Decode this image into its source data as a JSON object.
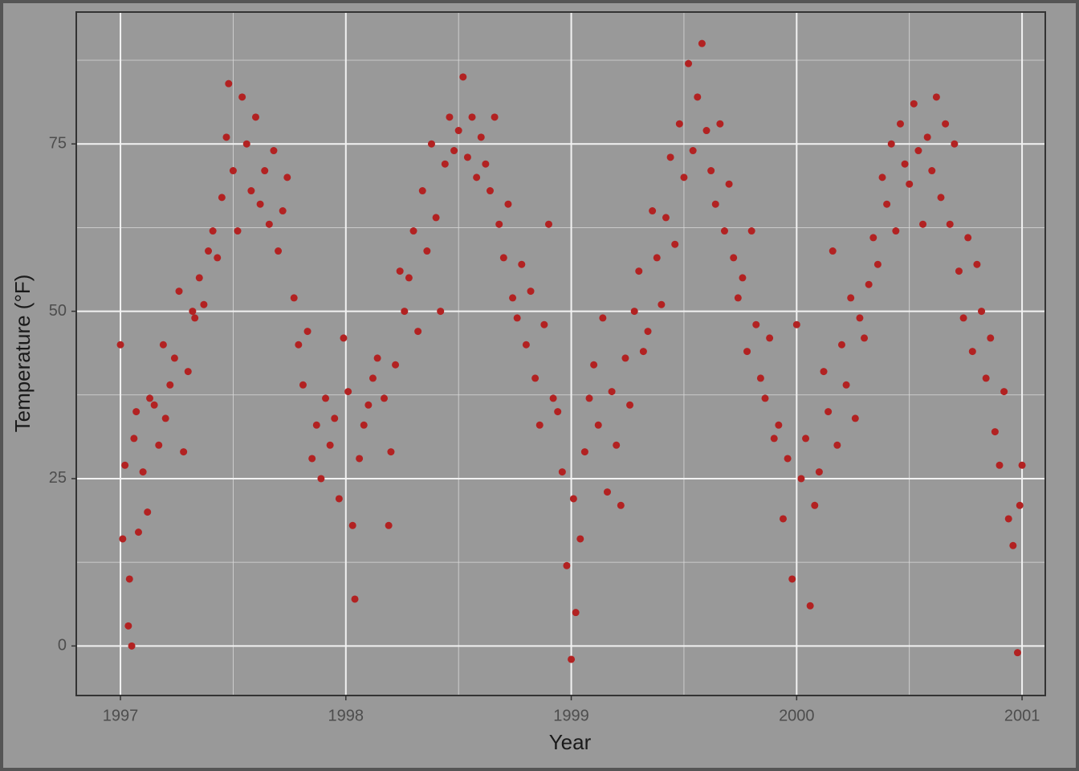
{
  "chart_data": {
    "type": "scatter",
    "x_label": "Year",
    "y_label": "Temperature (°F)",
    "color": "#b22222",
    "xlim": [
      1996.804,
      2001.103
    ],
    "ylim": [
      -7.4,
      94.7
    ],
    "xticks": [
      1997,
      1998,
      1999,
      2000,
      2001
    ],
    "yticks": [
      0,
      25,
      50,
      75
    ],
    "grid": true,
    "x": [
      1997.0,
      1997.01,
      1997.02,
      1997.035,
      1997.04,
      1997.05,
      1997.06,
      1997.07,
      1997.08,
      1997.1,
      1997.12,
      1997.13,
      1997.15,
      1997.17,
      1997.19,
      1997.2,
      1997.22,
      1997.24,
      1997.26,
      1997.28,
      1997.3,
      1997.32,
      1997.33,
      1997.35,
      1997.37,
      1997.39,
      1997.41,
      1997.43,
      1997.45,
      1997.47,
      1997.48,
      1997.5,
      1997.52,
      1997.54,
      1997.56,
      1997.58,
      1997.6,
      1997.62,
      1997.64,
      1997.66,
      1997.68,
      1997.7,
      1997.72,
      1997.74,
      1997.77,
      1997.79,
      1997.81,
      1997.83,
      1997.85,
      1997.87,
      1997.89,
      1997.91,
      1997.93,
      1997.95,
      1997.97,
      1997.99,
      1998.01,
      1998.03,
      1998.04,
      1998.06,
      1998.08,
      1998.1,
      1998.12,
      1998.14,
      1998.17,
      1998.19,
      1998.2,
      1998.22,
      1998.24,
      1998.26,
      1998.28,
      1998.3,
      1998.32,
      1998.34,
      1998.36,
      1998.38,
      1998.4,
      1998.42,
      1998.44,
      1998.46,
      1998.48,
      1998.5,
      1998.52,
      1998.54,
      1998.56,
      1998.58,
      1998.6,
      1998.62,
      1998.64,
      1998.66,
      1998.68,
      1998.7,
      1998.72,
      1998.74,
      1998.76,
      1998.78,
      1998.8,
      1998.82,
      1998.84,
      1998.86,
      1998.88,
      1998.9,
      1998.92,
      1998.94,
      1998.96,
      1998.98,
      1999.0,
      1999.01,
      1999.02,
      1999.04,
      1999.06,
      1999.08,
      1999.1,
      1999.12,
      1999.14,
      1999.16,
      1999.18,
      1999.2,
      1999.22,
      1999.24,
      1999.26,
      1999.28,
      1999.3,
      1999.32,
      1999.34,
      1999.36,
      1999.38,
      1999.4,
      1999.42,
      1999.44,
      1999.46,
      1999.48,
      1999.5,
      1999.52,
      1999.54,
      1999.56,
      1999.58,
      1999.6,
      1999.62,
      1999.64,
      1999.66,
      1999.68,
      1999.7,
      1999.72,
      1999.74,
      1999.76,
      1999.78,
      1999.8,
      1999.82,
      1999.84,
      1999.86,
      1999.88,
      1999.9,
      1999.92,
      1999.94,
      1999.96,
      1999.98,
      2000.0,
      2000.02,
      2000.04,
      2000.06,
      2000.08,
      2000.1,
      2000.12,
      2000.14,
      2000.16,
      2000.18,
      2000.2,
      2000.22,
      2000.24,
      2000.26,
      2000.28,
      2000.3,
      2000.32,
      2000.34,
      2000.36,
      2000.38,
      2000.4,
      2000.42,
      2000.44,
      2000.46,
      2000.48,
      2000.5,
      2000.52,
      2000.54,
      2000.56,
      2000.58,
      2000.6,
      2000.62,
      2000.64,
      2000.66,
      2000.68,
      2000.7,
      2000.72,
      2000.74,
      2000.76,
      2000.78,
      2000.8,
      2000.82,
      2000.84,
      2000.86,
      2000.88,
      2000.9,
      2000.92,
      2000.94,
      2000.96,
      2000.98,
      2000.99,
      2001.0
    ],
    "values": [
      45,
      16,
      27,
      3,
      10,
      0,
      31,
      35,
      17,
      26,
      20,
      37,
      36,
      30,
      45,
      34,
      39,
      43,
      53,
      29,
      41,
      50,
      49,
      55,
      51,
      59,
      62,
      58,
      67,
      76,
      84,
      71,
      62,
      82,
      75,
      68,
      79,
      66,
      71,
      63,
      74,
      59,
      65,
      70,
      52,
      45,
      39,
      47,
      28,
      33,
      25,
      37,
      30,
      34,
      22,
      46,
      38,
      18,
      7,
      28,
      33,
      36,
      40,
      43,
      37,
      18,
      29,
      42,
      56,
      50,
      55,
      62,
      47,
      68,
      59,
      75,
      64,
      50,
      72,
      79,
      74,
      77,
      85,
      73,
      79,
      70,
      76,
      72,
      68,
      79,
      63,
      58,
      66,
      52,
      49,
      57,
      45,
      53,
      40,
      33,
      48,
      63,
      37,
      35,
      26,
      12,
      -2,
      22,
      5,
      16,
      29,
      37,
      42,
      33,
      49,
      23,
      38,
      30,
      21,
      43,
      36,
      50,
      56,
      44,
      47,
      65,
      58,
      51,
      64,
      73,
      60,
      78,
      70,
      87,
      74,
      82,
      90,
      77,
      71,
      66,
      78,
      62,
      69,
      58,
      52,
      55,
      44,
      62,
      48,
      40,
      37,
      46,
      31,
      33,
      19,
      28,
      10,
      48,
      25,
      31,
      6,
      21,
      26,
      41,
      35,
      59,
      30,
      45,
      39,
      52,
      34,
      49,
      46,
      54,
      61,
      57,
      70,
      66,
      75,
      62,
      78,
      72,
      69,
      81,
      74,
      63,
      76,
      71,
      82,
      67,
      78,
      63,
      75,
      56,
      49,
      61,
      44,
      57,
      50,
      40,
      46,
      32,
      27,
      38,
      19,
      15,
      -1,
      21,
      27
    ]
  }
}
